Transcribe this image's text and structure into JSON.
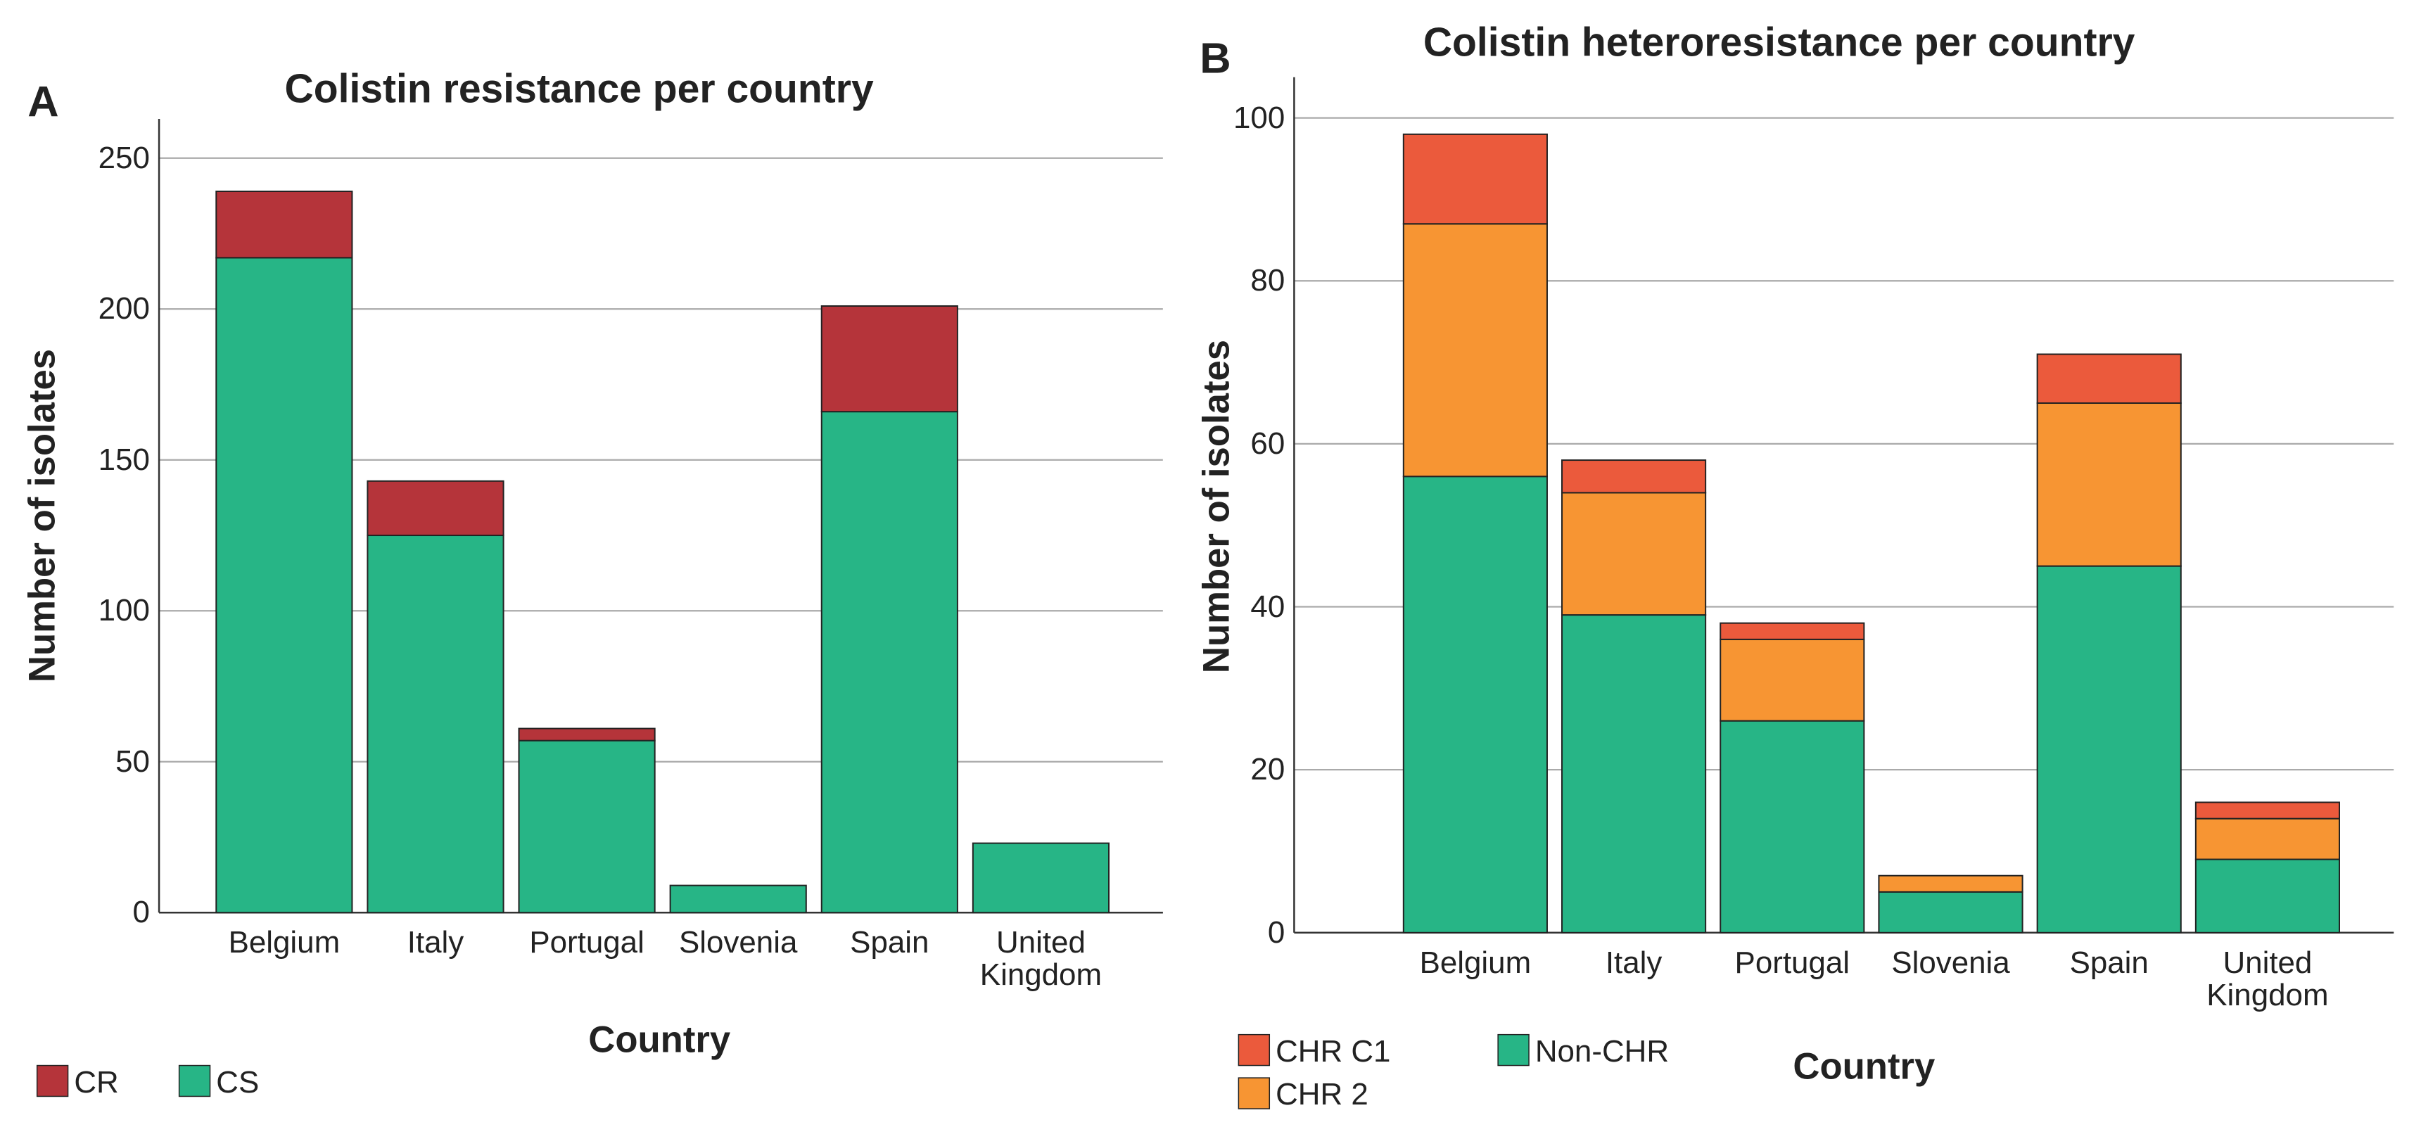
{
  "chart_data": [
    {
      "type": "stacked_bar",
      "panel_label": "A",
      "title": "Colistin resistance per country",
      "x_label": "Country",
      "y_label": "Number of isolates",
      "categories": [
        "Belgium",
        "Italy",
        "Portugal",
        "Slovenia",
        "Spain",
        "United Kingdom"
      ],
      "series": [
        {
          "name": "CS",
          "color": "#27b586",
          "values": [
            217,
            125,
            57,
            9,
            166,
            23
          ]
        },
        {
          "name": "CR",
          "color": "#b5343a",
          "values": [
            22,
            18,
            4,
            0,
            35,
            0
          ]
        }
      ],
      "ylim": [
        0,
        263
      ],
      "yticks": [
        0,
        50,
        100,
        150,
        200,
        250
      ],
      "grid": true
    },
    {
      "type": "stacked_bar",
      "panel_label": "B",
      "title": "Colistin heteroresistance per country",
      "x_label": "Country",
      "y_label": "Number of isolates",
      "categories": [
        "Belgium",
        "Italy",
        "Portugal",
        "Slovenia",
        "Spain",
        "United Kingdom"
      ],
      "series": [
        {
          "name": "Non-CHR",
          "color": "#27b586",
          "values": [
            56,
            39,
            26,
            5,
            45,
            9
          ]
        },
        {
          "name": "CHR 2",
          "color": "#f79533",
          "values": [
            31,
            15,
            10,
            2,
            20,
            5
          ]
        },
        {
          "name": "CHR C1",
          "color": "#eb5a3c",
          "values": [
            11,
            4,
            2,
            0,
            6,
            2
          ]
        }
      ],
      "ylim": [
        0,
        105
      ],
      "yticks": [
        0,
        20,
        40,
        60,
        80,
        100
      ],
      "grid": true
    }
  ]
}
